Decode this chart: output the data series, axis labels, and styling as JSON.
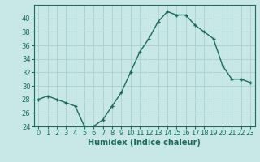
{
  "x": [
    0,
    1,
    2,
    3,
    4,
    5,
    6,
    7,
    8,
    9,
    10,
    11,
    12,
    13,
    14,
    15,
    16,
    17,
    18,
    19,
    20,
    21,
    22,
    23
  ],
  "y": [
    28,
    28.5,
    28,
    27.5,
    27,
    24,
    24,
    25,
    27,
    29,
    32,
    35,
    37,
    39.5,
    41,
    40.5,
    40.5,
    39,
    38,
    37,
    33,
    31,
    31,
    30.5
  ],
  "line_color": "#1a6b5a",
  "marker": "+",
  "bg_color": "#c8e8e8",
  "grid_color": "#aacfcf",
  "xlabel": "Humidex (Indice chaleur)",
  "ylim": [
    24,
    42
  ],
  "yticks": [
    24,
    26,
    28,
    30,
    32,
    34,
    36,
    38,
    40
  ],
  "xlim": [
    -0.5,
    23.5
  ],
  "xlabel_fontsize": 7,
  "tick_fontsize": 6,
  "line_width": 1.0,
  "marker_size": 3.5
}
